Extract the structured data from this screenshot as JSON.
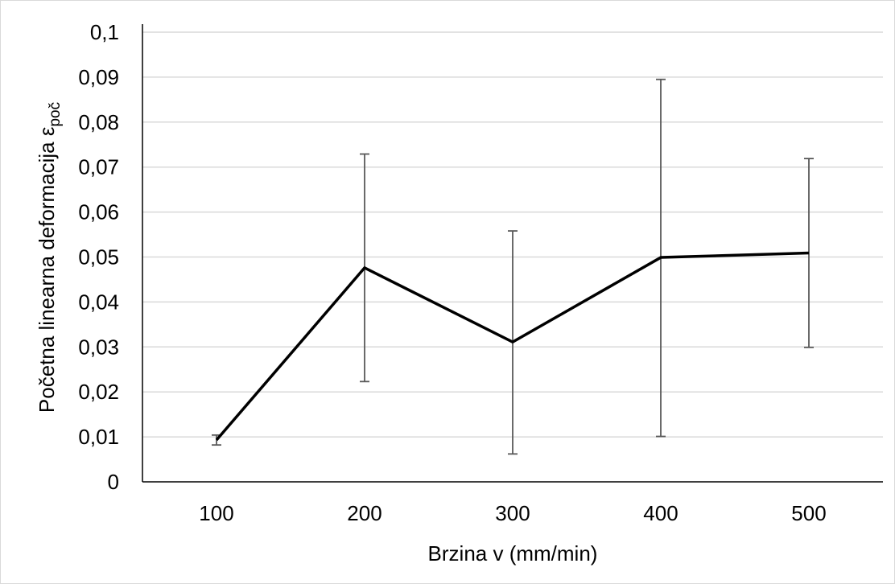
{
  "chart_data": {
    "type": "line",
    "title": "",
    "xlabel": "Brzina v (mm/min)",
    "ylabel": {
      "main": "Početna linearna deformacija ε",
      "subscript": "poč"
    },
    "categories": [
      "100",
      "200",
      "300",
      "400",
      "500"
    ],
    "series": [
      {
        "values": [
          0.0093,
          0.0476,
          0.0311,
          0.0499,
          0.0509
        ],
        "error_low": [
          0.0082,
          0.0223,
          0.0062,
          0.0101,
          0.0299
        ],
        "error_high": [
          0.0104,
          0.0729,
          0.0558,
          0.0895,
          0.0719
        ],
        "color": "#000000"
      }
    ],
    "ylim": [
      0,
      0.1
    ],
    "yticks": [
      0,
      0.01,
      0.02,
      0.03,
      0.04,
      0.05,
      0.06,
      0.07,
      0.08,
      0.09,
      0.1
    ],
    "ytick_labels": [
      "0",
      "0,01",
      "0,02",
      "0,03",
      "0,04",
      "0,05",
      "0,06",
      "0,07",
      "0,08",
      "0,09",
      "0,1"
    ],
    "grid": true,
    "legend": "none"
  }
}
